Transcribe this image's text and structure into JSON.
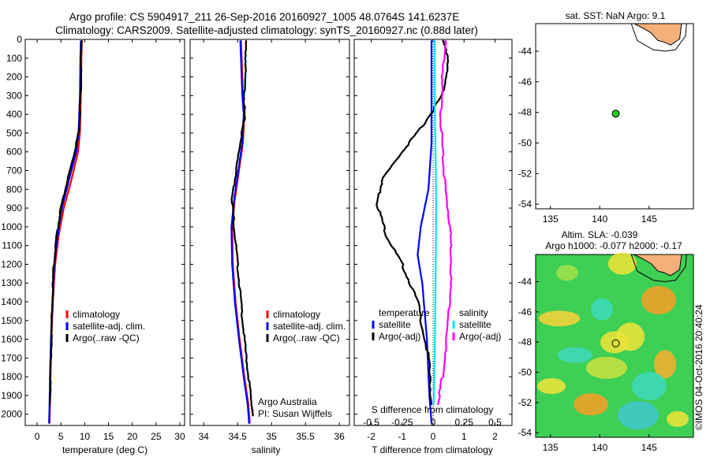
{
  "title": {
    "line1": "Argo profile: CS 5904917_211 26-Sep-2016 20160927_1005 48.0764S 141.6237E",
    "line2": "Climatology: CARS2009. Satellite-adjusted climatology: synTS_20160927.nc (0.88d later)"
  },
  "colors": {
    "clim": "#ff0000",
    "sat": "#0000ff",
    "argo": "#000000",
    "sal_sat": "#00e5ff",
    "sal_argo": "#ff00ff",
    "land": "#f5b07a",
    "float": "#22cc22"
  },
  "chart_data": [
    {
      "type": "line",
      "name": "temperature-profile",
      "xlabel": "temperature (deg C)",
      "xlim": [
        -2.5,
        31
      ],
      "xticks": [
        "0",
        "5",
        "10",
        "15",
        "20",
        "25",
        "30"
      ],
      "ylim": [
        0,
        2060
      ],
      "yticks": [
        "0",
        "100",
        "200",
        "300",
        "400",
        "500",
        "600",
        "700",
        "800",
        "900",
        "1000",
        "1100",
        "1200",
        "1300",
        "1400",
        "1500",
        "1600",
        "1700",
        "1800",
        "1900",
        "2000"
      ],
      "legend": [
        "climatology",
        "satellite-adj. clim.",
        "Argo(..raw -QC)"
      ],
      "legend_position": "lower-right",
      "series": [
        {
          "name": "climatology",
          "x": [
            9.4,
            9.3,
            9.2,
            9.0,
            8.6,
            7.2,
            5.6,
            4.5,
            3.8,
            3.3,
            3.0,
            2.8,
            2.7,
            2.6
          ],
          "y": [
            5,
            100,
            300,
            500,
            600,
            750,
            900,
            1050,
            1200,
            1400,
            1600,
            1800,
            1950,
            2050
          ]
        },
        {
          "name": "satellite-adj. clim.",
          "x": [
            9.2,
            9.1,
            9.0,
            8.7,
            8.2,
            6.7,
            5.2,
            4.3,
            3.6,
            3.2,
            2.9,
            2.7,
            2.6,
            2.5
          ],
          "y": [
            5,
            100,
            300,
            500,
            600,
            750,
            900,
            1050,
            1200,
            1400,
            1600,
            1800,
            1950,
            2050
          ]
        },
        {
          "name": "Argo(..raw -QC)",
          "x": [
            9.3,
            9.2,
            9.2,
            8.8,
            7.9,
            6.4,
            5.0,
            4.1,
            3.5,
            3.2,
            3.0,
            2.8,
            2.7
          ],
          "y": [
            5,
            100,
            300,
            480,
            600,
            750,
            900,
            1050,
            1200,
            1400,
            1600,
            1800,
            1950
          ]
        }
      ]
    },
    {
      "type": "line",
      "name": "salinity-profile",
      "xlabel": "salinity",
      "xlim": [
        33.8,
        36.15
      ],
      "xticks": [
        "34",
        "34.5",
        "35",
        "35.5",
        "36"
      ],
      "ylim": [
        0,
        2060
      ],
      "legend": [
        "climatology",
        "satellite-adj. clim.",
        "Argo(..raw -QC)"
      ],
      "legend_position": "lower-right",
      "annotation": [
        "Argo Australia",
        "PI: Susan Wijffels"
      ],
      "series": [
        {
          "name": "climatology",
          "x": [
            34.55,
            34.56,
            34.58,
            34.6,
            34.58,
            34.52,
            34.46,
            34.42,
            34.43,
            34.47,
            34.53,
            34.6,
            34.66,
            34.68
          ],
          "y": [
            5,
            100,
            300,
            400,
            550,
            700,
            850,
            1000,
            1200,
            1400,
            1600,
            1800,
            1950,
            2050
          ]
        },
        {
          "name": "satellite-adj. clim.",
          "x": [
            34.54,
            34.55,
            34.57,
            34.59,
            34.57,
            34.51,
            34.45,
            34.41,
            34.42,
            34.46,
            34.52,
            34.59,
            34.65,
            34.67
          ],
          "y": [
            5,
            100,
            300,
            400,
            550,
            700,
            850,
            1000,
            1200,
            1400,
            1600,
            1800,
            1950,
            2050
          ]
        },
        {
          "name": "Argo(..raw -QC)",
          "x": [
            34.62,
            34.62,
            34.6,
            34.6,
            34.54,
            34.48,
            34.42,
            34.45,
            34.5,
            34.55,
            34.6,
            34.66,
            34.71,
            34.72
          ],
          "y": [
            5,
            100,
            300,
            420,
            550,
            700,
            850,
            1000,
            1200,
            1400,
            1600,
            1800,
            1950,
            2010
          ]
        }
      ]
    },
    {
      "type": "line",
      "name": "difference-profile",
      "xlabel": "T difference from climatology",
      "x2label": "S difference from climatology",
      "xlim": [
        -2.55,
        2.55
      ],
      "xticks": [
        "-2",
        "-1",
        "0",
        "1",
        "2"
      ],
      "x2ticks": [
        "-0.5",
        "-0.25",
        "0",
        "0.25",
        "0.5"
      ],
      "ylim": [
        0,
        2060
      ],
      "legend_temperature": {
        "title": "temperature",
        "items": [
          "satellite",
          "Argo(-adj)"
        ]
      },
      "legend_salinity": {
        "title": "salinity",
        "items": [
          "satellite",
          "Argo(-adj)"
        ]
      },
      "series": [
        {
          "name": "T satellite",
          "x": [
            -0.05,
            -0.05,
            -0.05,
            -0.15,
            -0.4,
            -0.5,
            -0.35,
            -0.2,
            -0.12,
            -0.05
          ],
          "y": [
            5,
            300,
            550,
            800,
            1000,
            1150,
            1300,
            1600,
            1900,
            2050
          ]
        },
        {
          "name": "T Argo(-adj)",
          "x": [
            0.3,
            0.5,
            0.3,
            -0.3,
            -1.0,
            -1.65,
            -1.8,
            -1.5,
            -1.0,
            -0.5,
            -0.15,
            -0.05
          ],
          "y": [
            5,
            100,
            300,
            450,
            600,
            750,
            880,
            1050,
            1200,
            1400,
            1700,
            1950
          ]
        },
        {
          "name": "S satellite",
          "x": [
            0.05,
            0.05,
            0.08,
            0.1,
            0.08,
            0.05,
            0.02
          ],
          "y": [
            5,
            300,
            600,
            900,
            1300,
            1700,
            1950
          ]
        },
        {
          "name": "S Argo(-adj)",
          "x": [
            0.4,
            0.3,
            0.25,
            0.3,
            0.4,
            0.55,
            0.6,
            0.5,
            0.3,
            0.15
          ],
          "y": [
            5,
            200,
            400,
            600,
            800,
            1000,
            1200,
            1500,
            1800,
            1950
          ]
        }
      ]
    },
    {
      "type": "scatter",
      "name": "sst-map",
      "title": "sat. SST: NaN Argo: 9.1",
      "xlim": [
        133.5,
        149.5
      ],
      "ylim": [
        -54.3,
        -42.2
      ],
      "xticks": [
        "135",
        "140",
        "145"
      ],
      "yticks": [
        "-44",
        "-46",
        "-48",
        "-50",
        "-52",
        "-54"
      ],
      "series": [
        {
          "name": "float",
          "x": [
            141.62
          ],
          "y": [
            -48.08
          ]
        }
      ]
    },
    {
      "type": "heatmap",
      "name": "sla-map",
      "title_line1": "Altim. SLA: -0.039",
      "title_line2": "Argo h1000: -0.077 h2000: -0.17",
      "xlim": [
        133.5,
        149.5
      ],
      "ylim": [
        -54.3,
        -42.2
      ],
      "xticks": [
        "135",
        "140",
        "145"
      ],
      "yticks": [
        "-44",
        "-46",
        "-48",
        "-50",
        "-52",
        "-54"
      ],
      "series": [
        {
          "name": "float",
          "x": [
            141.62
          ],
          "y": [
            -48.08
          ]
        }
      ]
    }
  ],
  "credit": "©IMOS 04-Oct-2016 20:40:24"
}
